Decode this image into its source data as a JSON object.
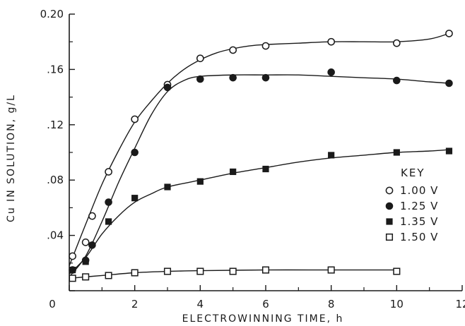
{
  "chart_data": {
    "type": "line",
    "xlabel": "ELECTROWINNING TIME, h",
    "ylabel": "Cu IN SOLUTION, g/L",
    "xlim": [
      0,
      12
    ],
    "ylim": [
      0,
      0.2
    ],
    "x_ticks": [
      {
        "value": 0,
        "label": "0"
      },
      {
        "value": 2,
        "label": "2"
      },
      {
        "value": 4,
        "label": "4"
      },
      {
        "value": 6,
        "label": "6"
      },
      {
        "value": 8,
        "label": "8"
      },
      {
        "value": 10,
        "label": "10"
      },
      {
        "value": 12,
        "label": "12"
      }
    ],
    "y_ticks": [
      {
        "value": 0,
        "label": ""
      },
      {
        "value": 0.04,
        "label": ".04"
      },
      {
        "value": 0.08,
        "label": ".08"
      },
      {
        "value": 0.12,
        "label": ".12"
      },
      {
        "value": 0.16,
        "label": ".16"
      },
      {
        "value": 0.2,
        "label": "0.20"
      }
    ],
    "grid": false,
    "legend_title": "KEY",
    "legend_position": "right",
    "series": [
      {
        "name": "1.00 V",
        "marker": "circle-open",
        "points": [
          [
            0.1,
            0.025
          ],
          [
            0.5,
            0.035
          ],
          [
            0.7,
            0.054
          ],
          [
            1.2,
            0.086
          ],
          [
            2,
            0.124
          ],
          [
            3,
            0.149
          ],
          [
            4,
            0.168
          ],
          [
            5,
            0.174
          ],
          [
            6,
            0.177
          ],
          [
            8,
            0.18
          ],
          [
            10,
            0.179
          ],
          [
            11.6,
            0.186
          ]
        ],
        "curve": [
          [
            0,
            0.018
          ],
          [
            0.5,
            0.048
          ],
          [
            1,
            0.077
          ],
          [
            1.5,
            0.101
          ],
          [
            2,
            0.122
          ],
          [
            2.5,
            0.137
          ],
          [
            3,
            0.15
          ],
          [
            3.5,
            0.16
          ],
          [
            4,
            0.167
          ],
          [
            4.5,
            0.172
          ],
          [
            5,
            0.175
          ],
          [
            5.5,
            0.177
          ],
          [
            6,
            0.178
          ],
          [
            7,
            0.179
          ],
          [
            8,
            0.18
          ],
          [
            9,
            0.18
          ],
          [
            10,
            0.18
          ],
          [
            11,
            0.182
          ],
          [
            11.6,
            0.186
          ]
        ]
      },
      {
        "name": "1.25 V",
        "marker": "circle-filled",
        "points": [
          [
            0.1,
            0.015
          ],
          [
            0.5,
            0.022
          ],
          [
            0.7,
            0.033
          ],
          [
            1.2,
            0.064
          ],
          [
            2,
            0.1
          ],
          [
            3,
            0.147
          ],
          [
            4,
            0.153
          ],
          [
            5,
            0.154
          ],
          [
            6,
            0.154
          ],
          [
            8,
            0.158
          ],
          [
            10,
            0.152
          ],
          [
            11.6,
            0.15
          ]
        ],
        "curve": [
          [
            0,
            0.01
          ],
          [
            0.5,
            0.025
          ],
          [
            1,
            0.05
          ],
          [
            1.5,
            0.078
          ],
          [
            2,
            0.103
          ],
          [
            2.5,
            0.127
          ],
          [
            3,
            0.144
          ],
          [
            3.5,
            0.152
          ],
          [
            4,
            0.155
          ],
          [
            5,
            0.156
          ],
          [
            6,
            0.156
          ],
          [
            7,
            0.156
          ],
          [
            8,
            0.155
          ],
          [
            9,
            0.154
          ],
          [
            10,
            0.153
          ],
          [
            11,
            0.151
          ],
          [
            11.6,
            0.15
          ]
        ]
      },
      {
        "name": "1.35 V",
        "marker": "square-filled",
        "points": [
          [
            0.1,
            0.015
          ],
          [
            0.5,
            0.021
          ],
          [
            1.2,
            0.05
          ],
          [
            2,
            0.067
          ],
          [
            3,
            0.075
          ],
          [
            4,
            0.079
          ],
          [
            5,
            0.086
          ],
          [
            6,
            0.088
          ],
          [
            8,
            0.098
          ],
          [
            10,
            0.1
          ],
          [
            11.6,
            0.101
          ]
        ],
        "curve": [
          [
            0,
            0.012
          ],
          [
            0.5,
            0.024
          ],
          [
            1,
            0.041
          ],
          [
            1.5,
            0.054
          ],
          [
            2,
            0.064
          ],
          [
            2.5,
            0.07
          ],
          [
            3,
            0.075
          ],
          [
            4,
            0.08
          ],
          [
            5,
            0.085
          ],
          [
            6,
            0.089
          ],
          [
            7,
            0.093
          ],
          [
            8,
            0.096
          ],
          [
            9,
            0.098
          ],
          [
            10,
            0.1
          ],
          [
            11,
            0.101
          ],
          [
            11.6,
            0.102
          ]
        ]
      },
      {
        "name": "1.50 V",
        "marker": "square-open",
        "points": [
          [
            0.1,
            0.009
          ],
          [
            0.5,
            0.01
          ],
          [
            1.2,
            0.011
          ],
          [
            2,
            0.013
          ],
          [
            3,
            0.014
          ],
          [
            4,
            0.014
          ],
          [
            5,
            0.014
          ],
          [
            6,
            0.015
          ],
          [
            8,
            0.015
          ],
          [
            10,
            0.014
          ]
        ],
        "curve": [
          [
            0,
            0.009
          ],
          [
            1,
            0.011
          ],
          [
            2,
            0.013
          ],
          [
            3,
            0.014
          ],
          [
            4,
            0.0145
          ],
          [
            6,
            0.015
          ],
          [
            8,
            0.015
          ],
          [
            10,
            0.015
          ]
        ]
      }
    ]
  }
}
